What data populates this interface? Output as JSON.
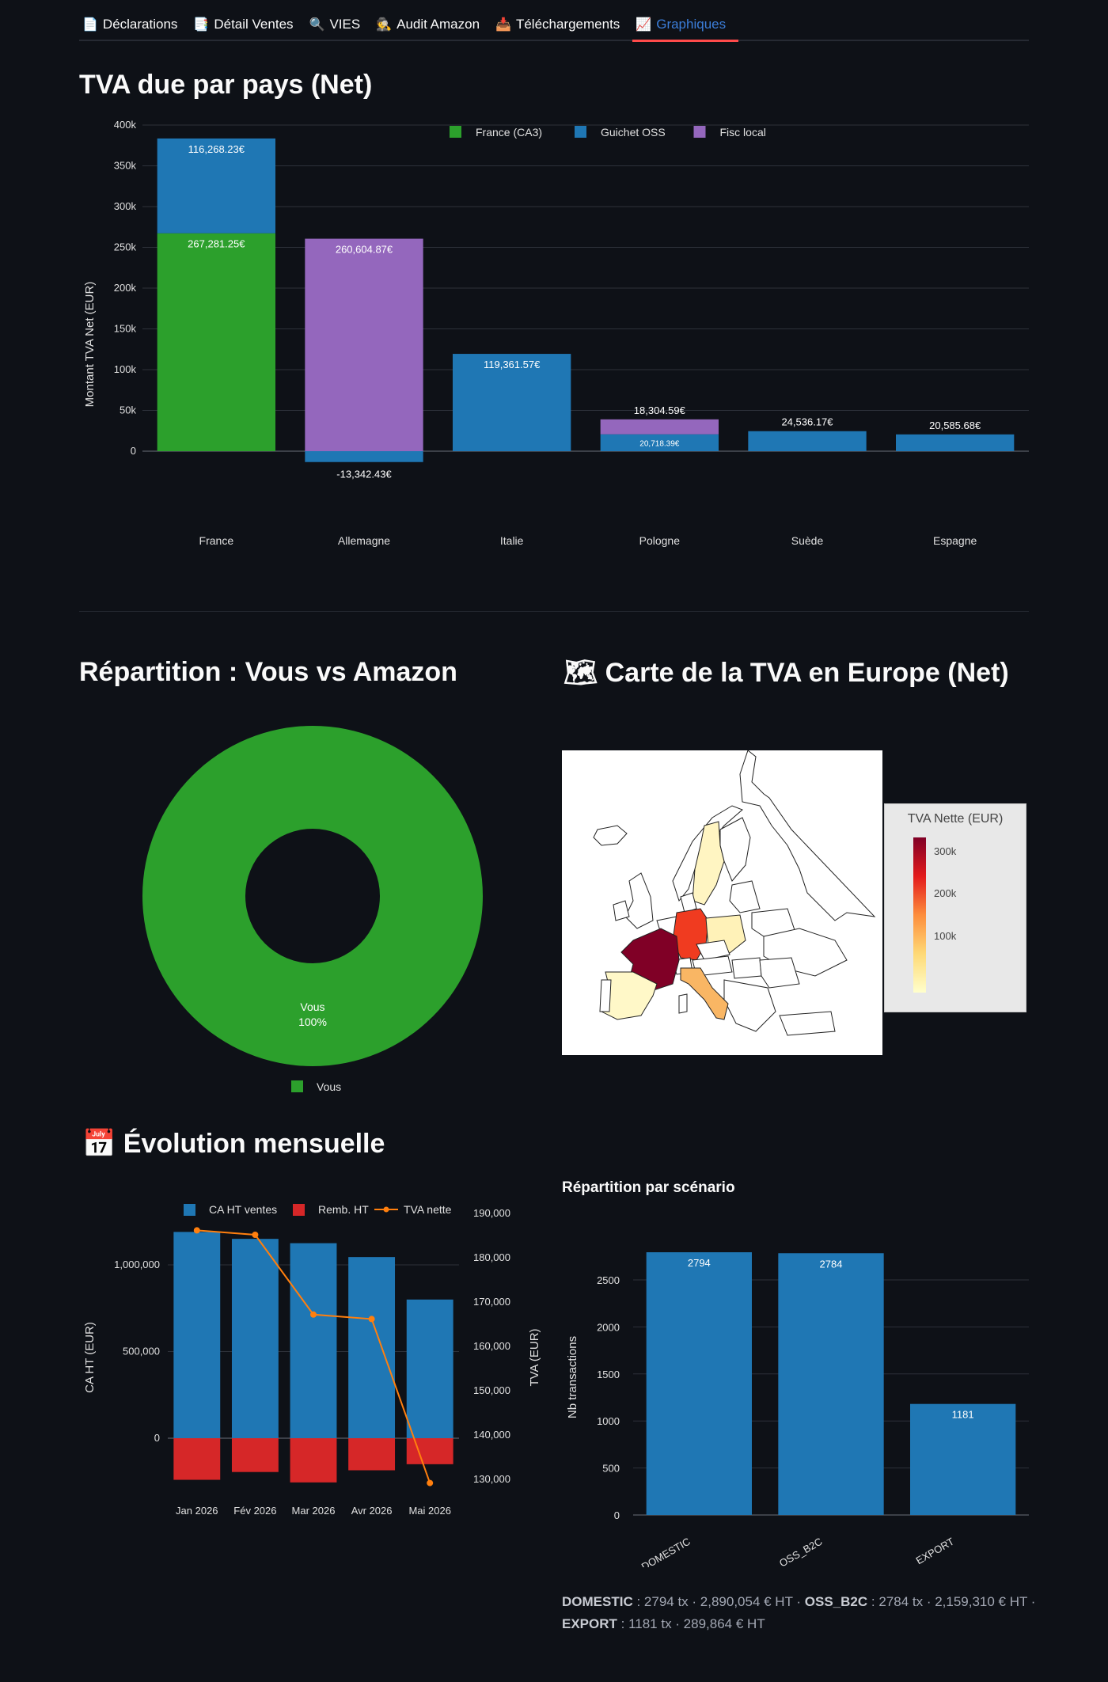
{
  "tabs": [
    {
      "icon": "📄",
      "icon_name": "page-icon",
      "label": "Déclarations",
      "active": false
    },
    {
      "icon": "📑",
      "icon_name": "document-icon",
      "label": "Détail Ventes",
      "active": false
    },
    {
      "icon": "🔍",
      "icon_name": "search-icon",
      "label": "VIES",
      "active": false
    },
    {
      "icon": "🕵",
      "icon_name": "detective-icon",
      "label": "Audit Amazon",
      "active": false
    },
    {
      "icon": "📥",
      "icon_name": "inbox-tray-icon",
      "label": "Téléchargements",
      "active": false
    },
    {
      "icon": "📈",
      "icon_name": "chart-increasing-icon",
      "label": "Graphiques",
      "active": true
    }
  ],
  "sections": {
    "tva_pays": "TVA due par pays (Net)",
    "repartition": "Répartition : Vous vs Amazon",
    "carte": "Carte de la TVA en Europe (Net)",
    "carte_icon": "🗺",
    "evolution": "Évolution mensuelle",
    "evolution_icon": "📅",
    "scenario": "Répartition par scénario"
  },
  "colors": {
    "background": "#0e1117",
    "green": "#2ca02c",
    "blue": "#1f77b4",
    "purple": "#9467bd",
    "red": "#d62728",
    "orange": "#ff7f0e"
  },
  "chart_data": [
    {
      "id": "tva_pays",
      "type": "bar",
      "stacked": true,
      "categories": [
        "France",
        "Allemagne",
        "Italie",
        "Pologne",
        "Suède",
        "Espagne"
      ],
      "series": [
        {
          "name": "France (CA3)",
          "color": "#2ca02c",
          "values": [
            267281.25,
            0,
            0,
            0,
            0,
            0
          ],
          "labels": [
            "267,281.25€",
            "",
            "",
            "",
            "",
            ""
          ]
        },
        {
          "name": "Guichet OSS",
          "color": "#1f77b4",
          "values": [
            116268.23,
            -13342.43,
            119361.57,
            20718.39,
            24536.17,
            20585.68
          ],
          "labels": [
            "116,268.23€",
            "-13,342.43€",
            "119,361.57€",
            "20,718.39€",
            "24,536.17€",
            "20,585.68€"
          ]
        },
        {
          "name": "Fisc local",
          "color": "#9467bd",
          "values": [
            0,
            260604.87,
            0,
            18304.59,
            0,
            0
          ],
          "labels": [
            "",
            "260,604.87€",
            "",
            "18,304.59€",
            "",
            ""
          ]
        }
      ],
      "ylabel": "Montant TVA Net (EUR)",
      "ylim": [
        -20000,
        400000
      ],
      "yticks": [
        0,
        50000,
        100000,
        150000,
        200000,
        250000,
        300000,
        350000,
        400000
      ],
      "ytick_labels": [
        "0",
        "50k",
        "100k",
        "150k",
        "200k",
        "250k",
        "300k",
        "350k",
        "400k"
      ],
      "legend": "top-center",
      "grid": true
    },
    {
      "id": "repartition",
      "type": "pie",
      "donut": true,
      "slices": [
        {
          "label": "Vous",
          "value": 100,
          "percent": "100%",
          "color": "#2ca02c"
        }
      ],
      "legend": "bottom-center"
    },
    {
      "id": "carte",
      "type": "choropleth",
      "colorbar_title": "TVA Nette (EUR)",
      "colorbar_ticks": [
        "300k",
        "200k",
        "100k"
      ],
      "countries": [
        {
          "name": "France",
          "value": 383549.48,
          "color": "#800026"
        },
        {
          "name": "Allemagne",
          "value": 247262.44,
          "color": "#f03b20"
        },
        {
          "name": "Italie",
          "value": 119361.57,
          "color": "#f9b664"
        },
        {
          "name": "Pologne",
          "value": 39022.98,
          "color": "#fff2b8"
        },
        {
          "name": "Suède",
          "value": 24536.17,
          "color": "#fff5c2"
        },
        {
          "name": "Espagne",
          "value": 20585.68,
          "color": "#fff8c8"
        }
      ]
    },
    {
      "id": "evolution",
      "type": "bar",
      "categories": [
        "Jan 2026",
        "Fév 2026",
        "Mar 2026",
        "Avr 2026",
        "Mai 2026"
      ],
      "series": [
        {
          "name": "CA HT ventes",
          "type": "bar",
          "color": "#1f77b4",
          "values": [
            1190000,
            1150000,
            1125000,
            1045000,
            800000
          ]
        },
        {
          "name": "Remb. HT",
          "type": "bar",
          "color": "#d62728",
          "values": [
            -240000,
            -195000,
            -255000,
            -185000,
            -150000
          ]
        },
        {
          "name": "TVA nette",
          "type": "line",
          "axis": "right",
          "color": "#ff7f0e",
          "values": [
            186000,
            185000,
            167000,
            166000,
            129000
          ]
        }
      ],
      "ylabel": "CA HT (EUR)",
      "ylim": [
        -290000,
        1300000
      ],
      "yticks": [
        0,
        500000,
        1000000
      ],
      "ytick_labels": [
        "0",
        "500,000",
        "1,000,000"
      ],
      "y2label": "TVA (EUR)",
      "y2lim": [
        127000,
        190000
      ],
      "y2ticks": [
        130000,
        140000,
        150000,
        160000,
        170000,
        180000,
        190000
      ],
      "y2tick_labels": [
        "130,000",
        "140,000",
        "150,000",
        "160,000",
        "170,000",
        "180,000",
        "190,000"
      ],
      "legend": "top-center",
      "grid": true
    },
    {
      "id": "scenario",
      "type": "bar",
      "categories": [
        "DOMESTIC",
        "OSS_B2C",
        "EXPORT"
      ],
      "values": [
        2794,
        2784,
        1181
      ],
      "labels": [
        "2794",
        "2784",
        "1181"
      ],
      "color": "#1f77b4",
      "ylabel": "Nb transactions",
      "ylim": [
        0,
        2800
      ],
      "yticks": [
        0,
        500,
        1000,
        1500,
        2000,
        2500
      ],
      "ytick_labels": [
        "0",
        "500",
        "1000",
        "1500",
        "2000",
        "2500"
      ],
      "grid": true
    }
  ],
  "scenario_summary": [
    {
      "name": "DOMESTIC",
      "text": ": 2794 tx · 2,890,054 € HT ·"
    },
    {
      "name": "OSS_B2C",
      "text": ": 2784 tx · 2,159,310 € HT ·"
    },
    {
      "name": "EXPORT",
      "text": ": 1181 tx · 289,864 € HT"
    }
  ]
}
